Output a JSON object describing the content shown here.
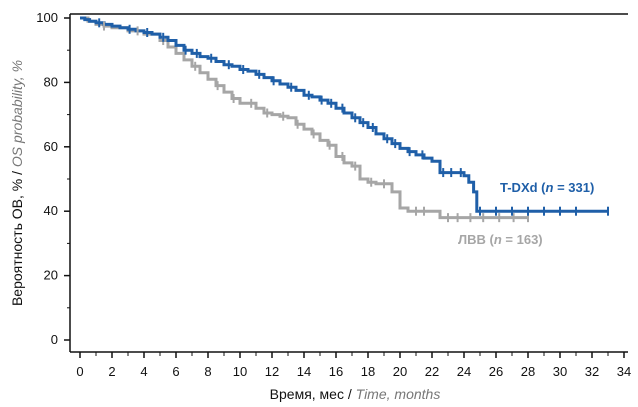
{
  "chart_data": {
    "type": "line",
    "subtype": "kaplan-meier step curve",
    "xlabel": {
      "main": "Время, мес / ",
      "italic": "Time, months"
    },
    "ylabel": {
      "main": "Вероятность ОВ, % / ",
      "italic": "OS probability, %"
    },
    "xlim": [
      0,
      34
    ],
    "ylim": [
      0,
      100
    ],
    "xticks": [
      "0",
      "2",
      "4",
      "6",
      "8",
      "10",
      "12",
      "14",
      "16",
      "18",
      "20",
      "22",
      "24",
      "26",
      "28",
      "30",
      "32",
      "34"
    ],
    "yticks": [
      "0",
      "20",
      "40",
      "60",
      "80",
      "100"
    ],
    "grid": false,
    "series": [
      {
        "label_parts": [
          "T-DXd (",
          "n",
          " = 331)"
        ],
        "color": "#1f5fa8",
        "points": [
          [
            0,
            100
          ],
          [
            0.3,
            99.5
          ],
          [
            0.6,
            99
          ],
          [
            1,
            98.5
          ],
          [
            1.5,
            98
          ],
          [
            2,
            97.5
          ],
          [
            2.5,
            97
          ],
          [
            3,
            96.5
          ],
          [
            3.5,
            96
          ],
          [
            4,
            95.5
          ],
          [
            4.5,
            95
          ],
          [
            5,
            94
          ],
          [
            5.5,
            93
          ],
          [
            6,
            91.5
          ],
          [
            6.5,
            90
          ],
          [
            7,
            89
          ],
          [
            7.5,
            88
          ],
          [
            8,
            87.5
          ],
          [
            8.5,
            86.5
          ],
          [
            9,
            85.5
          ],
          [
            9.5,
            85
          ],
          [
            10,
            84
          ],
          [
            10.5,
            83.5
          ],
          [
            11,
            82.5
          ],
          [
            11.5,
            81.5
          ],
          [
            12,
            80.5
          ],
          [
            12.5,
            79.5
          ],
          [
            13,
            78.5
          ],
          [
            13.5,
            77.5
          ],
          [
            14,
            76
          ],
          [
            14.5,
            75.5
          ],
          [
            15,
            74.5
          ],
          [
            15.5,
            73.5
          ],
          [
            16,
            72
          ],
          [
            16.5,
            70.5
          ],
          [
            17,
            69
          ],
          [
            17.5,
            67.5
          ],
          [
            18,
            66
          ],
          [
            18.5,
            64
          ],
          [
            19,
            62.5
          ],
          [
            19.5,
            61
          ],
          [
            20,
            59.5
          ],
          [
            20.5,
            58.5
          ],
          [
            21,
            57.5
          ],
          [
            21.5,
            56.5
          ],
          [
            22,
            55.5
          ],
          [
            22.5,
            52
          ],
          [
            23,
            52
          ],
          [
            23.5,
            52
          ],
          [
            24,
            51
          ],
          [
            24.3,
            49
          ],
          [
            24.6,
            46
          ],
          [
            24.8,
            40
          ],
          [
            25.5,
            40
          ],
          [
            33,
            40
          ]
        ],
        "censor_x": [
          1.2,
          3.1,
          4.2,
          5.2,
          6.6,
          7.3,
          8.2,
          9.3,
          10.2,
          11.2,
          12.1,
          13.2,
          14.3,
          15.1,
          15.7,
          16.4,
          17.2,
          17.7,
          18.3,
          19.2,
          19.7,
          20.6,
          21.4,
          22.7,
          23.2,
          23.8,
          25.0,
          26.0,
          27.0,
          28.0,
          29.0,
          30.0,
          31.0,
          33.0
        ]
      },
      {
        "label_parts": [
          "ЛВВ (",
          "n",
          " = 163)"
        ],
        "color": "#a6a6a6",
        "points": [
          [
            0,
            100
          ],
          [
            0.5,
            99
          ],
          [
            1,
            98
          ],
          [
            1.5,
            97.5
          ],
          [
            2,
            97
          ],
          [
            3,
            96
          ],
          [
            4,
            95
          ],
          [
            5,
            93
          ],
          [
            5.5,
            91
          ],
          [
            6,
            89
          ],
          [
            6.5,
            87
          ],
          [
            7,
            85
          ],
          [
            7.5,
            83
          ],
          [
            8,
            81
          ],
          [
            8.5,
            79
          ],
          [
            9,
            77
          ],
          [
            9.5,
            75
          ],
          [
            10,
            73.5
          ],
          [
            11,
            72
          ],
          [
            11.5,
            70.5
          ],
          [
            12,
            70
          ],
          [
            12.5,
            69.5
          ],
          [
            13,
            69
          ],
          [
            13.5,
            67
          ],
          [
            14,
            65.5
          ],
          [
            14.5,
            64
          ],
          [
            15,
            62
          ],
          [
            15.5,
            60.5
          ],
          [
            16,
            57
          ],
          [
            16.5,
            55
          ],
          [
            17,
            54
          ],
          [
            17.5,
            50
          ],
          [
            18,
            49
          ],
          [
            18.5,
            48.5
          ],
          [
            19,
            48.5
          ],
          [
            19.5,
            46
          ],
          [
            20,
            41
          ],
          [
            20.5,
            40
          ],
          [
            22,
            40
          ],
          [
            22.5,
            38
          ],
          [
            28,
            38
          ]
        ],
        "censor_x": [
          1.5,
          3.6,
          5.2,
          7.2,
          8.6,
          9.6,
          10.7,
          11.7,
          12.7,
          13.6,
          14.6,
          15.6,
          16.4,
          17.2,
          18.2,
          19.0,
          21.0,
          21.5,
          23.0,
          23.6,
          24.4,
          25.2,
          26.2,
          27.1,
          28.0
        ]
      }
    ]
  }
}
